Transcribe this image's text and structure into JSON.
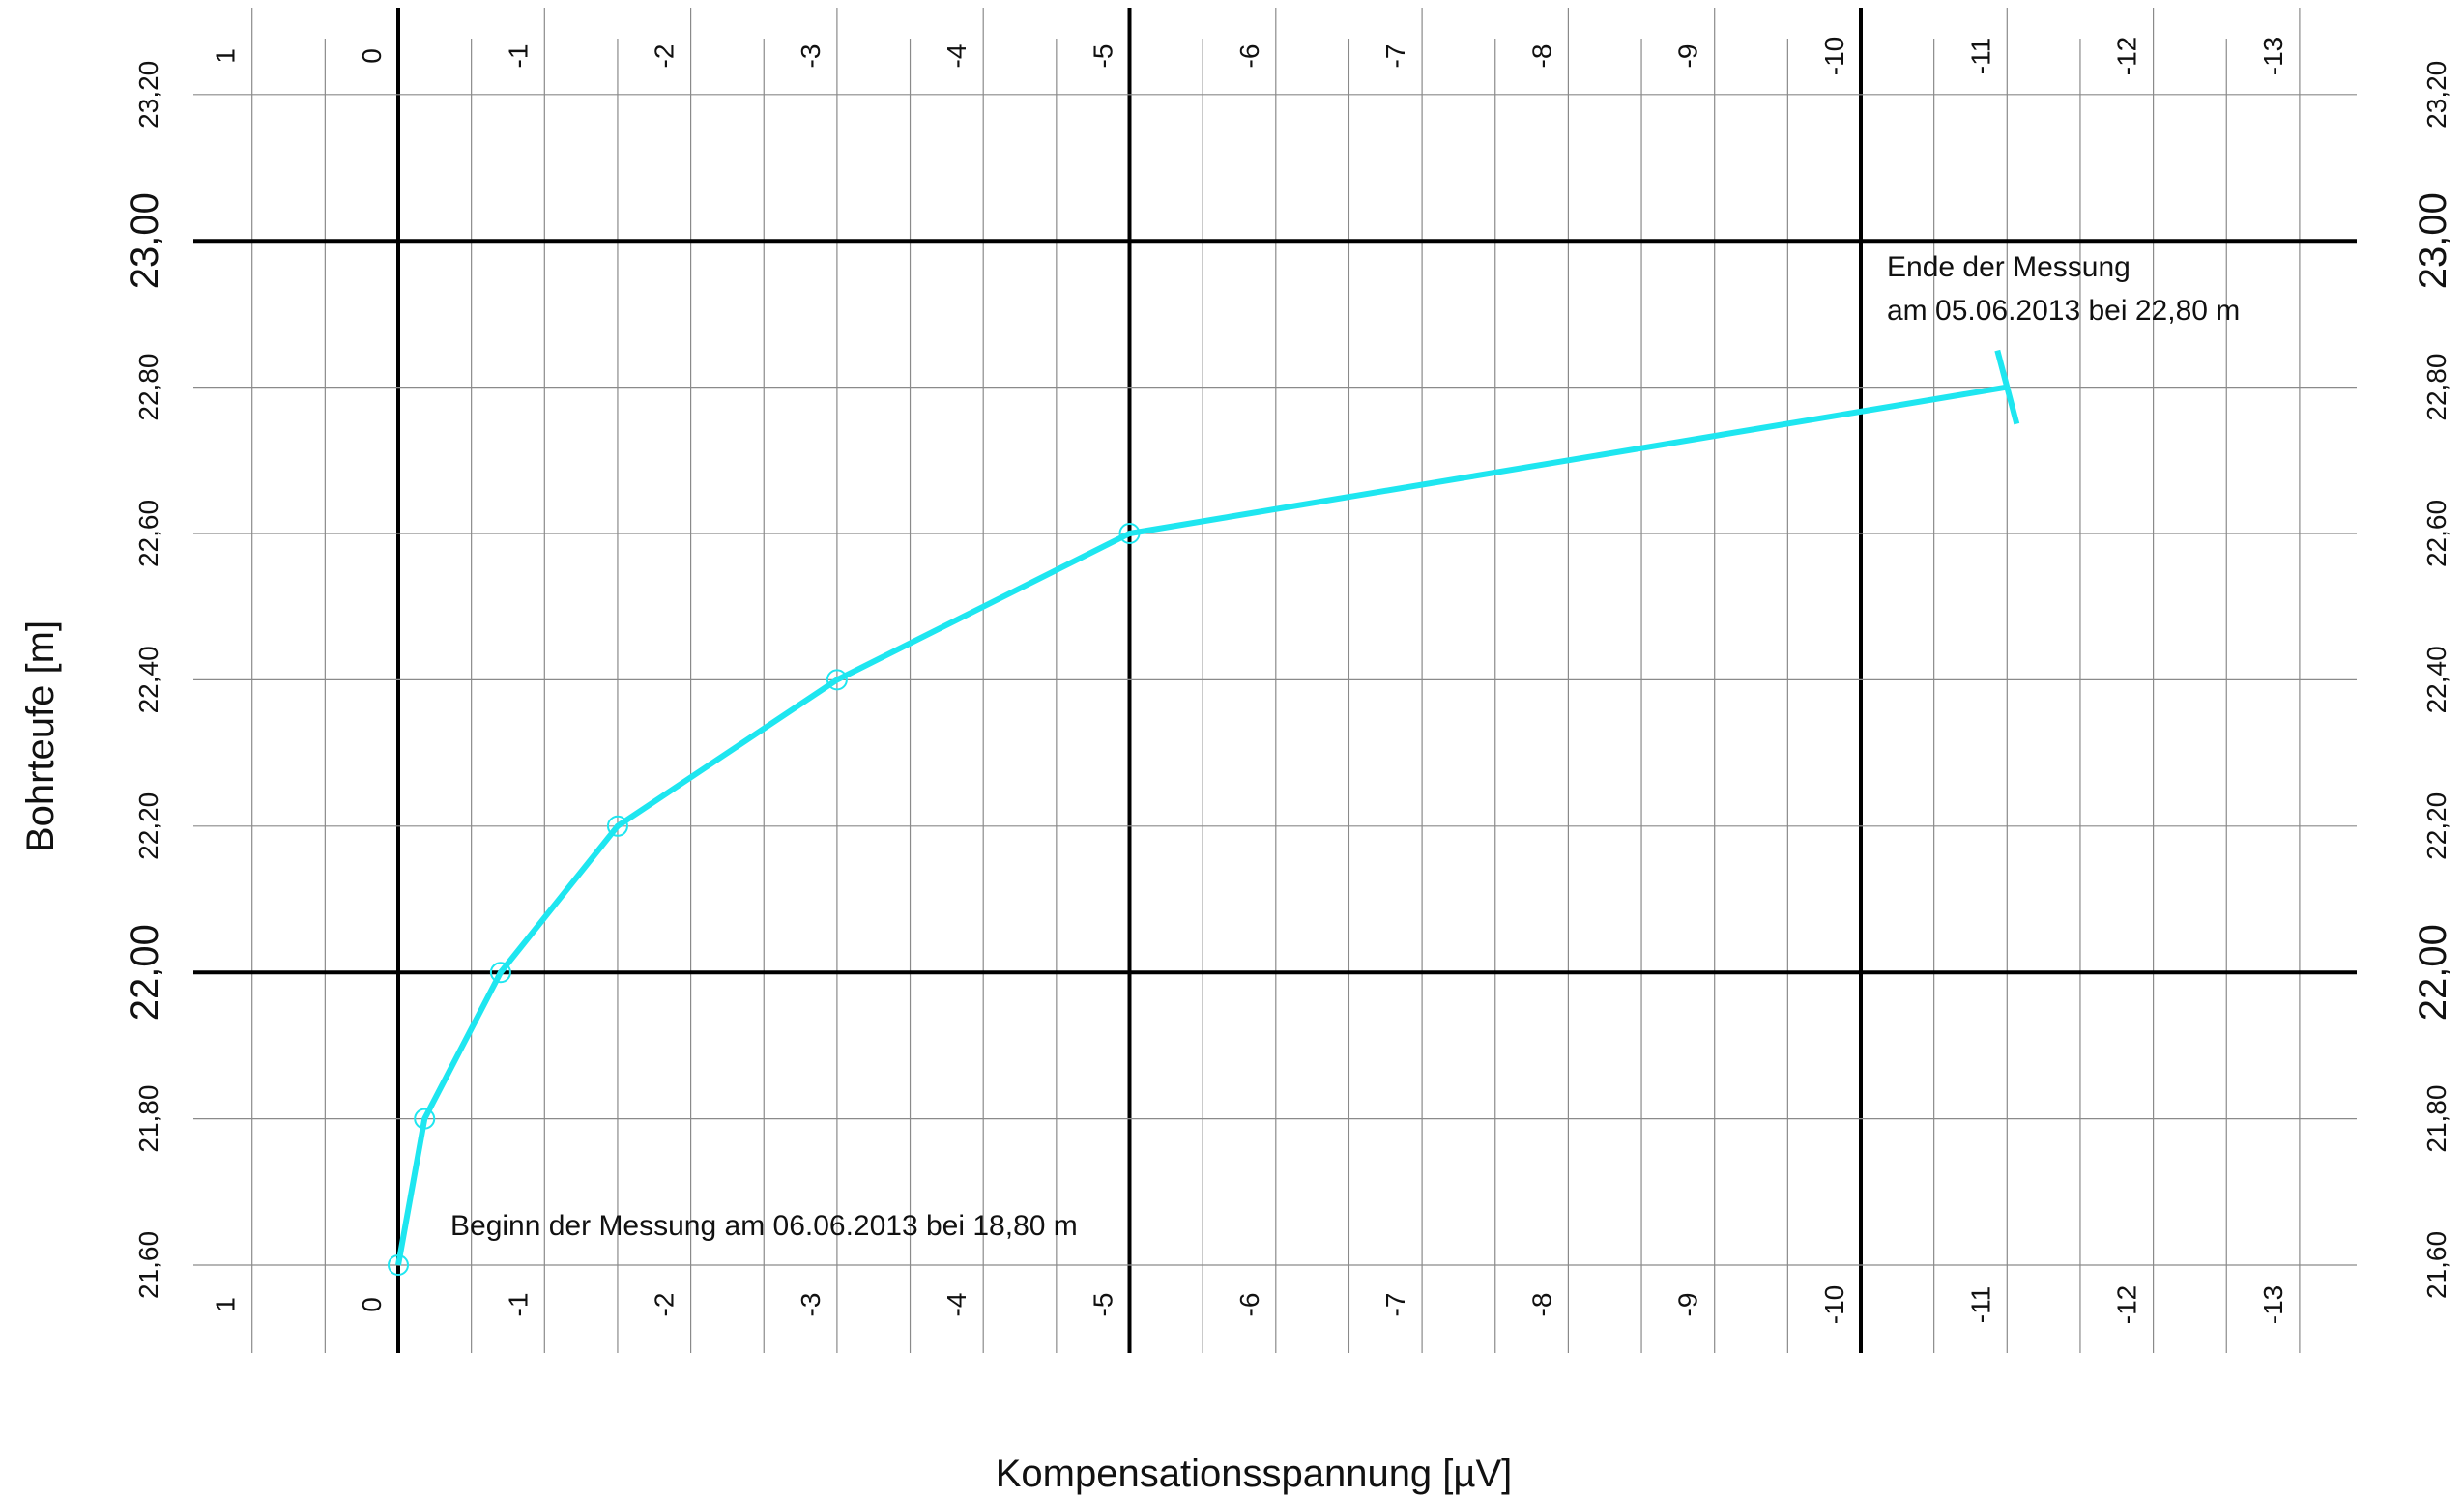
{
  "chart_data": {
    "type": "line",
    "xlabel": "Kompensationsspannung [µV]",
    "ylabel": "Bohrteufe [m]",
    "xlim": [
      1,
      -13
    ],
    "ylim": [
      21.6,
      23.2
    ],
    "x_ticks": [
      "1",
      "0",
      "-1",
      "-2",
      "-3",
      "-4",
      "-5",
      "-6",
      "-7",
      "-8",
      "-9",
      "-10",
      "-11",
      "-12",
      "-13"
    ],
    "y_ticks": [
      "21,60",
      "21,80",
      "22,00",
      "22,20",
      "22,40",
      "22,60",
      "22,80",
      "23,00",
      "23,20"
    ],
    "series": [
      {
        "color": "#1ee6f0",
        "points": [
          {
            "x": 0.0,
            "y": 21.6
          },
          {
            "x": -0.18,
            "y": 21.8
          },
          {
            "x": -0.7,
            "y": 22.0
          },
          {
            "x": -1.5,
            "y": 22.2
          },
          {
            "x": -3.0,
            "y": 22.4
          },
          {
            "x": -5.0,
            "y": 22.6
          },
          {
            "x": -11.0,
            "y": 22.8
          }
        ]
      }
    ],
    "annotations": [
      {
        "text": "Beginn der Messung am 06.06.2013 bei 18,80 m"
      },
      {
        "text": "Ende der Messung"
      },
      {
        "text": "am 05.06.2013 bei 22,80 m"
      }
    ],
    "grid": true,
    "colors": {
      "line": "#1ee6f0",
      "grid": "#8a8a8a",
      "major_grid": "#000000"
    }
  }
}
